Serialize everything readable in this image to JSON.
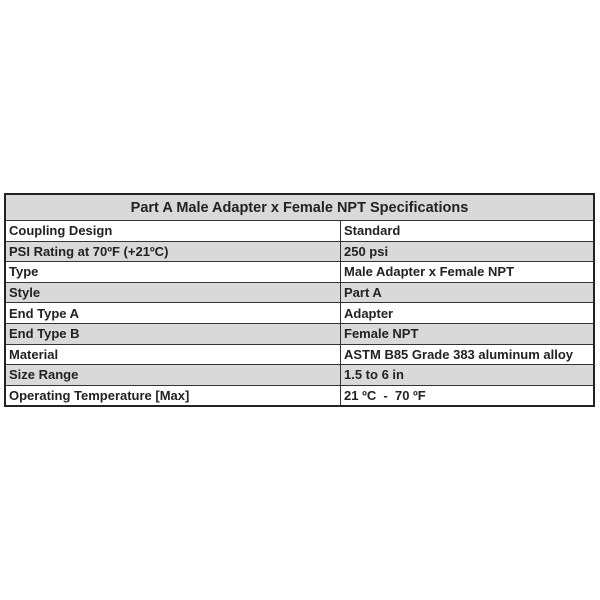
{
  "table": {
    "title": "Part A Male Adapter x Female NPT Specifications",
    "header_color": "#d9d9d9",
    "rows": [
      {
        "label": "Coupling Design",
        "value": "Standard"
      },
      {
        "label": "PSI Rating at 70ºF (+21ºC)",
        "value": "250 psi"
      },
      {
        "label": "Type",
        "value": "Male Adapter x Female NPT"
      },
      {
        "label": "Style",
        "value": "Part A"
      },
      {
        "label": "End Type A",
        "value": "Adapter"
      },
      {
        "label": "End Type B",
        "value": "Female NPT"
      },
      {
        "label": "Material",
        "value": "ASTM B85 Grade 383 aluminum alloy"
      },
      {
        "label": "Size Range",
        "value": "1.5 to 6 in"
      },
      {
        "label": "Operating Temperature [Max]",
        "value": "21 ºC  -  70 ºF"
      }
    ]
  }
}
